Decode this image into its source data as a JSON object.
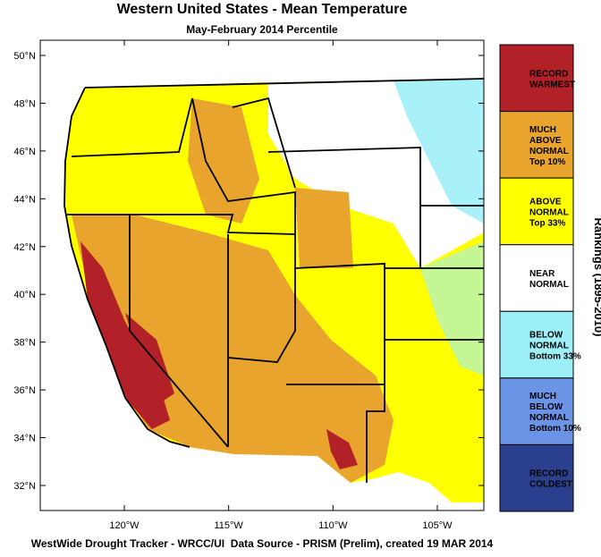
{
  "title": "Western United States - Mean Temperature",
  "subtitle": "May-February 2014 Percentile",
  "map": {
    "lat_ticks": [
      {
        "value": 50,
        "label": "50°N"
      },
      {
        "value": 48,
        "label": "48°N"
      },
      {
        "value": 46,
        "label": "46°N"
      },
      {
        "value": 44,
        "label": "44°N"
      },
      {
        "value": 42,
        "label": "42°N"
      },
      {
        "value": 40,
        "label": "40°N"
      },
      {
        "value": 38,
        "label": "38°N"
      },
      {
        "value": 36,
        "label": "36°N"
      },
      {
        "value": 34,
        "label": "34°N"
      },
      {
        "value": 32,
        "label": "32°N"
      }
    ],
    "lon_ticks": [
      {
        "value": -120,
        "label": "120°W"
      },
      {
        "value": -115,
        "label": "115°W"
      },
      {
        "value": -110,
        "label": "110°W"
      },
      {
        "value": -105,
        "label": "105°W"
      }
    ]
  },
  "legend": {
    "title": "Rankings (1895-2010)",
    "items": [
      {
        "lines": [
          "RECORD",
          "WARMEST"
        ],
        "color": "#b22028"
      },
      {
        "lines": [
          "MUCH",
          "ABOVE",
          "NORMAL",
          "Top 10%"
        ],
        "color": "#e8a42c"
      },
      {
        "lines": [
          "ABOVE",
          "NORMAL",
          "Top 33%"
        ],
        "color": "#ffff00"
      },
      {
        "lines": [
          "NEAR",
          "NORMAL"
        ],
        "color": "#ffffff"
      },
      {
        "lines": [
          "BELOW",
          "NORMAL",
          "Bottom 33%"
        ],
        "color": "#9ef0f8"
      },
      {
        "lines": [
          "MUCH",
          "BELOW",
          "NORMAL",
          "Bottom 10%"
        ],
        "color": "#6b93e6"
      },
      {
        "lines": [
          "RECORD",
          "COLDEST"
        ],
        "color": "#2a3f8e"
      }
    ]
  },
  "footer": "WestWide Drought Tracker - WRCC/UI  Data Source - PRISM (Prelim), created 19 MAR 2014"
}
